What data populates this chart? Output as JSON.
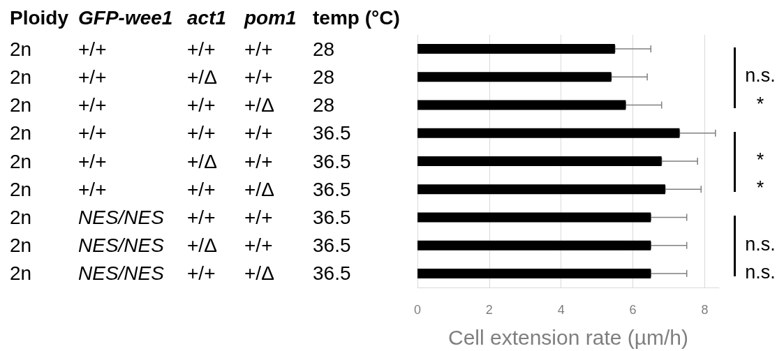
{
  "chart_data": {
    "type": "bar",
    "orientation": "horizontal",
    "ylabel": "Ploidy GFP-wee1 act1 pom1 temp (°C)",
    "xlabel": "Cell extension rate (µm/h)",
    "categories": [
      "2n +/+ +/+ +/+ 28",
      "2n +/+ +/Δ +/+ 28",
      "2n +/+ +/+ +/Δ 28",
      "2n +/+ +/+ +/+ 36.5",
      "2n +/+ +/Δ +/+ 36.5",
      "2n +/+ +/+ +/Δ 36.5",
      "2n NES/NES +/+ +/+ 36.5",
      "2n NES/NES +/Δ +/+ 36.5",
      "2n NES/NES +/+ +/Δ 36.5"
    ],
    "values": [
      5.5,
      5.4,
      5.8,
      7.3,
      6.8,
      6.9,
      6.5,
      6.5,
      6.5
    ],
    "errors": [
      [
        5.5,
        6.5
      ],
      [
        5.4,
        6.4
      ],
      [
        5.8,
        6.8
      ],
      [
        7.3,
        8.3
      ],
      [
        6.8,
        7.8
      ],
      [
        6.9,
        7.9
      ],
      [
        6.5,
        7.5
      ],
      [
        6.5,
        7.5
      ],
      [
        6.5,
        7.5
      ]
    ],
    "color": "#000000",
    "xlim": [
      0,
      8.4
    ],
    "xticks": [
      0,
      2,
      4,
      6,
      8
    ],
    "grid": "x",
    "annotations": [
      "n.s.",
      "*",
      "*",
      "*",
      "n.s.",
      "n.s."
    ]
  }
}
